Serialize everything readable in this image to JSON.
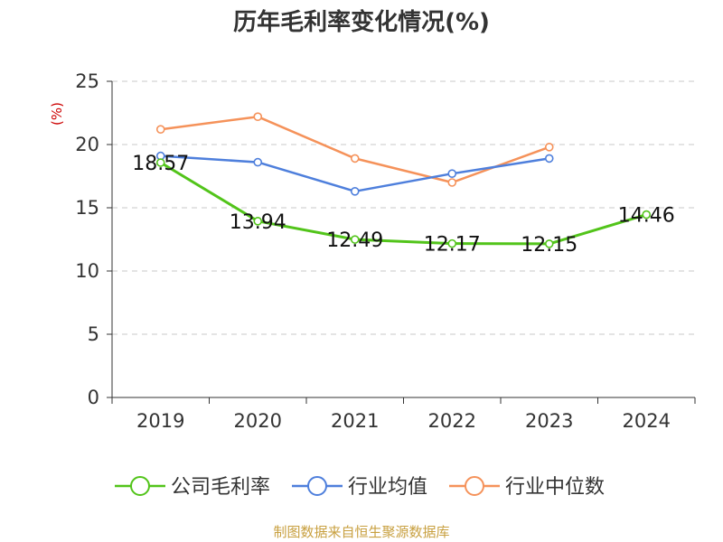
{
  "chart_data": {
    "type": "line",
    "title": "历年毛利率变化情况(%)",
    "y_unit": "(%)",
    "categories": [
      "2019",
      "2020",
      "2021",
      "2022",
      "2023",
      "2024"
    ],
    "y_ticks": [
      "0",
      "5",
      "10",
      "15",
      "20",
      "25"
    ],
    "ylim": [
      0,
      25
    ],
    "grid": true,
    "legend_position": "bottom",
    "series": [
      {
        "name": "公司毛利率",
        "color": "#52c41a",
        "values": [
          18.57,
          13.94,
          12.49,
          12.17,
          12.15,
          14.46
        ],
        "labels": [
          "18.57",
          "13.94",
          "12.49",
          "12.17",
          "12.15",
          "14.46"
        ]
      },
      {
        "name": "行业均值",
        "color": "#4e7fdc",
        "values": [
          19.1,
          18.6,
          16.3,
          17.7,
          18.9,
          null
        ]
      },
      {
        "name": "行业中位数",
        "color": "#f5925a",
        "values": [
          21.2,
          22.2,
          18.9,
          17.0,
          19.8,
          null
        ]
      }
    ]
  },
  "source_text": "制图数据来自恒生聚源数据库"
}
